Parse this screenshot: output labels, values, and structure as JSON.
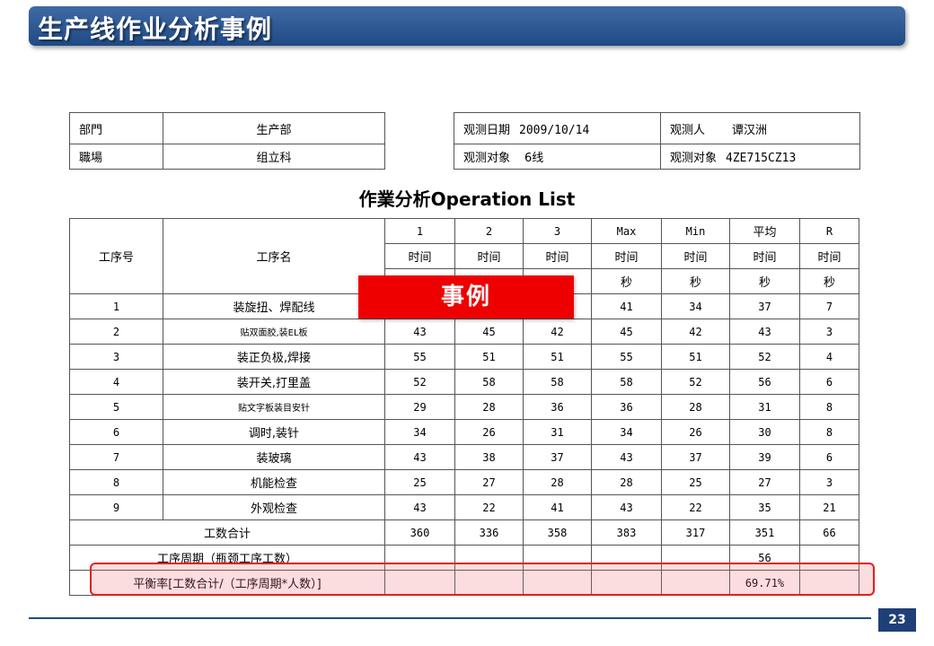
{
  "slide": {
    "title": "生产线作业分析事例",
    "page_number": "23",
    "stamp": "事例"
  },
  "info": {
    "dept_label": "部門",
    "dept_value": "生产部",
    "workplace_label": "職場",
    "workplace_value": "组立科",
    "date_label": "观测日期",
    "date_value": "2009/10/14",
    "observer_label": "观测人",
    "observer_value": "谭汉洲",
    "object1_label": "观测对象",
    "object1_value": "6线",
    "object2_label": "观测对象",
    "object2_value": "4ZE715CZ13"
  },
  "operation_list": {
    "title_cn": "作業分析",
    "title_en": "Operation List",
    "header": {
      "col_no": "工序号",
      "col_name": "工序名",
      "cols": [
        "1",
        "2",
        "3",
        "Max",
        "Min",
        "平均",
        "R"
      ],
      "unit_time": "时间",
      "unit_sec": "秒"
    },
    "rows": [
      {
        "no": "1",
        "name": "装旋扭、焊配线",
        "v": [
          "",
          "",
          "",
          "41",
          "34",
          "37",
          "7"
        ]
      },
      {
        "no": "2",
        "name": "贴双面胶,装EL板",
        "v": [
          "43",
          "45",
          "42",
          "45",
          "42",
          "43",
          "3"
        ]
      },
      {
        "no": "3",
        "name": "装正负极,焊接",
        "v": [
          "55",
          "51",
          "51",
          "55",
          "51",
          "52",
          "4"
        ]
      },
      {
        "no": "4",
        "name": "装开关,打里盖",
        "v": [
          "52",
          "58",
          "58",
          "58",
          "52",
          "56",
          "6"
        ]
      },
      {
        "no": "5",
        "name": "贴文字板装目安针",
        "v": [
          "29",
          "28",
          "36",
          "36",
          "28",
          "31",
          "8"
        ]
      },
      {
        "no": "6",
        "name": "调时,装针",
        "v": [
          "34",
          "26",
          "31",
          "34",
          "26",
          "30",
          "8"
        ]
      },
      {
        "no": "7",
        "name": "装玻璃",
        "v": [
          "43",
          "38",
          "37",
          "43",
          "37",
          "39",
          "6"
        ]
      },
      {
        "no": "8",
        "name": "机能检查",
        "v": [
          "25",
          "27",
          "28",
          "28",
          "25",
          "27",
          "3"
        ]
      },
      {
        "no": "9",
        "name": "外观检查",
        "v": [
          "43",
          "22",
          "41",
          "43",
          "22",
          "35",
          "21"
        ]
      }
    ],
    "total": {
      "label": "工数合计",
      "v": [
        "360",
        "336",
        "358",
        "383",
        "317",
        "351",
        "66"
      ]
    },
    "cycle": {
      "label": "工序周期（瓶颈工序工数）",
      "value": "56"
    },
    "balance": {
      "label": "平衡率[工数合计/（工序周期*人数）]",
      "value": "69.71%"
    }
  },
  "colors": {
    "banner": "#1f4a86",
    "stamp": "#ee0000",
    "highlight_border": "#e02020",
    "highlight_fill": "#f8d0d4"
  }
}
